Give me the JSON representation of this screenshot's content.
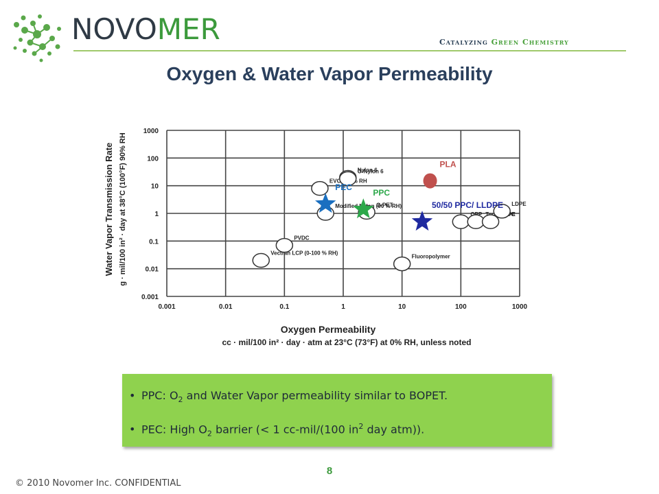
{
  "header": {
    "brand_part1": "NOVO",
    "brand_part2": "MER",
    "tagline_part1": "Catalyzing ",
    "tagline_part2": "Green Chemistry",
    "logo_icon": "molecule-network-icon"
  },
  "title": "Oxygen & Water Vapor Permeability",
  "chart_data": {
    "type": "scatter",
    "x_scale": "log",
    "y_scale": "log",
    "xlim": [
      0.001,
      1000
    ],
    "ylim": [
      0.001,
      1000
    ],
    "grid": true,
    "x_ticks": [
      "0.001",
      "0.01",
      "0.1",
      "1",
      "10",
      "100",
      "1000"
    ],
    "y_ticks": [
      "1000",
      "100",
      "10",
      "1",
      "0.1",
      "0.01",
      "0.001"
    ],
    "xlabel": "Oxygen Permeability",
    "xlabel_sub": "cc · mil/100 in² · day · atm at 23°C (73°F) at 0% RH, unless noted",
    "ylabel": "Water Vapor Transmission Rate",
    "ylabel_sub": "g · mil/100 in² · day at 38°C (100°F) 90% RH",
    "materials": [
      {
        "label": "EVOH 90% RH",
        "x": 0.4,
        "y": 8
      },
      {
        "label": "Nylon 6",
        "x": 1.2,
        "y": 20
      },
      {
        "label": "O-Nylon 6",
        "x": 1.2,
        "y": 18
      },
      {
        "label": "Modified Nylon (90 % RH)",
        "x": 0.5,
        "y": 1
      },
      {
        "label": "O-PET",
        "x": 2.5,
        "y": 1.1
      },
      {
        "label": "PVDC",
        "x": 0.1,
        "y": 0.07
      },
      {
        "label": "Vectran LCP (0-100 % RH)",
        "x": 0.04,
        "y": 0.02
      },
      {
        "label": "Fluoropolymer",
        "x": 10,
        "y": 0.015
      },
      {
        "label": "OPP",
        "x": 100,
        "y": 0.5
      },
      {
        "label": "Topas COC",
        "x": 180,
        "y": 0.5
      },
      {
        "label": "HDPE",
        "x": 320,
        "y": 0.5
      },
      {
        "label": "LDPE",
        "x": 500,
        "y": 1.2
      }
    ],
    "highlights": [
      {
        "label": "PEC",
        "x": 0.5,
        "y": 2.2,
        "marker": "star",
        "color": "#1a6fc0"
      },
      {
        "label": "PPC",
        "x": 2.2,
        "y": 1.4,
        "marker": "star",
        "color": "#2ca84a"
      },
      {
        "label": "PLA",
        "x": 30,
        "y": 15,
        "marker": "circle",
        "color": "#c0504d"
      },
      {
        "label": "50/50 PPC/ LLDPE",
        "x": 22,
        "y": 0.5,
        "marker": "star",
        "color": "#1f2aa0"
      }
    ]
  },
  "notes": [
    {
      "prefix": "PPC: O",
      "sub": "2",
      "suffix": " and Water Vapor permeability similar to BOPET."
    },
    {
      "prefix": "PEC: High O",
      "sub": "2",
      "mid": " barrier (< 1 cc-mil/(100 in",
      "sup": "2",
      "suffix": " day atm))."
    }
  ],
  "footer": {
    "page_number": "8",
    "copyright": "© 2010 Novomer Inc. CONFIDENTIAL"
  },
  "colors": {
    "brand_dark": "#2f3a45",
    "brand_green": "#3c9a3c",
    "note_box": "#8fd24e",
    "title": "#2a3f5c"
  }
}
